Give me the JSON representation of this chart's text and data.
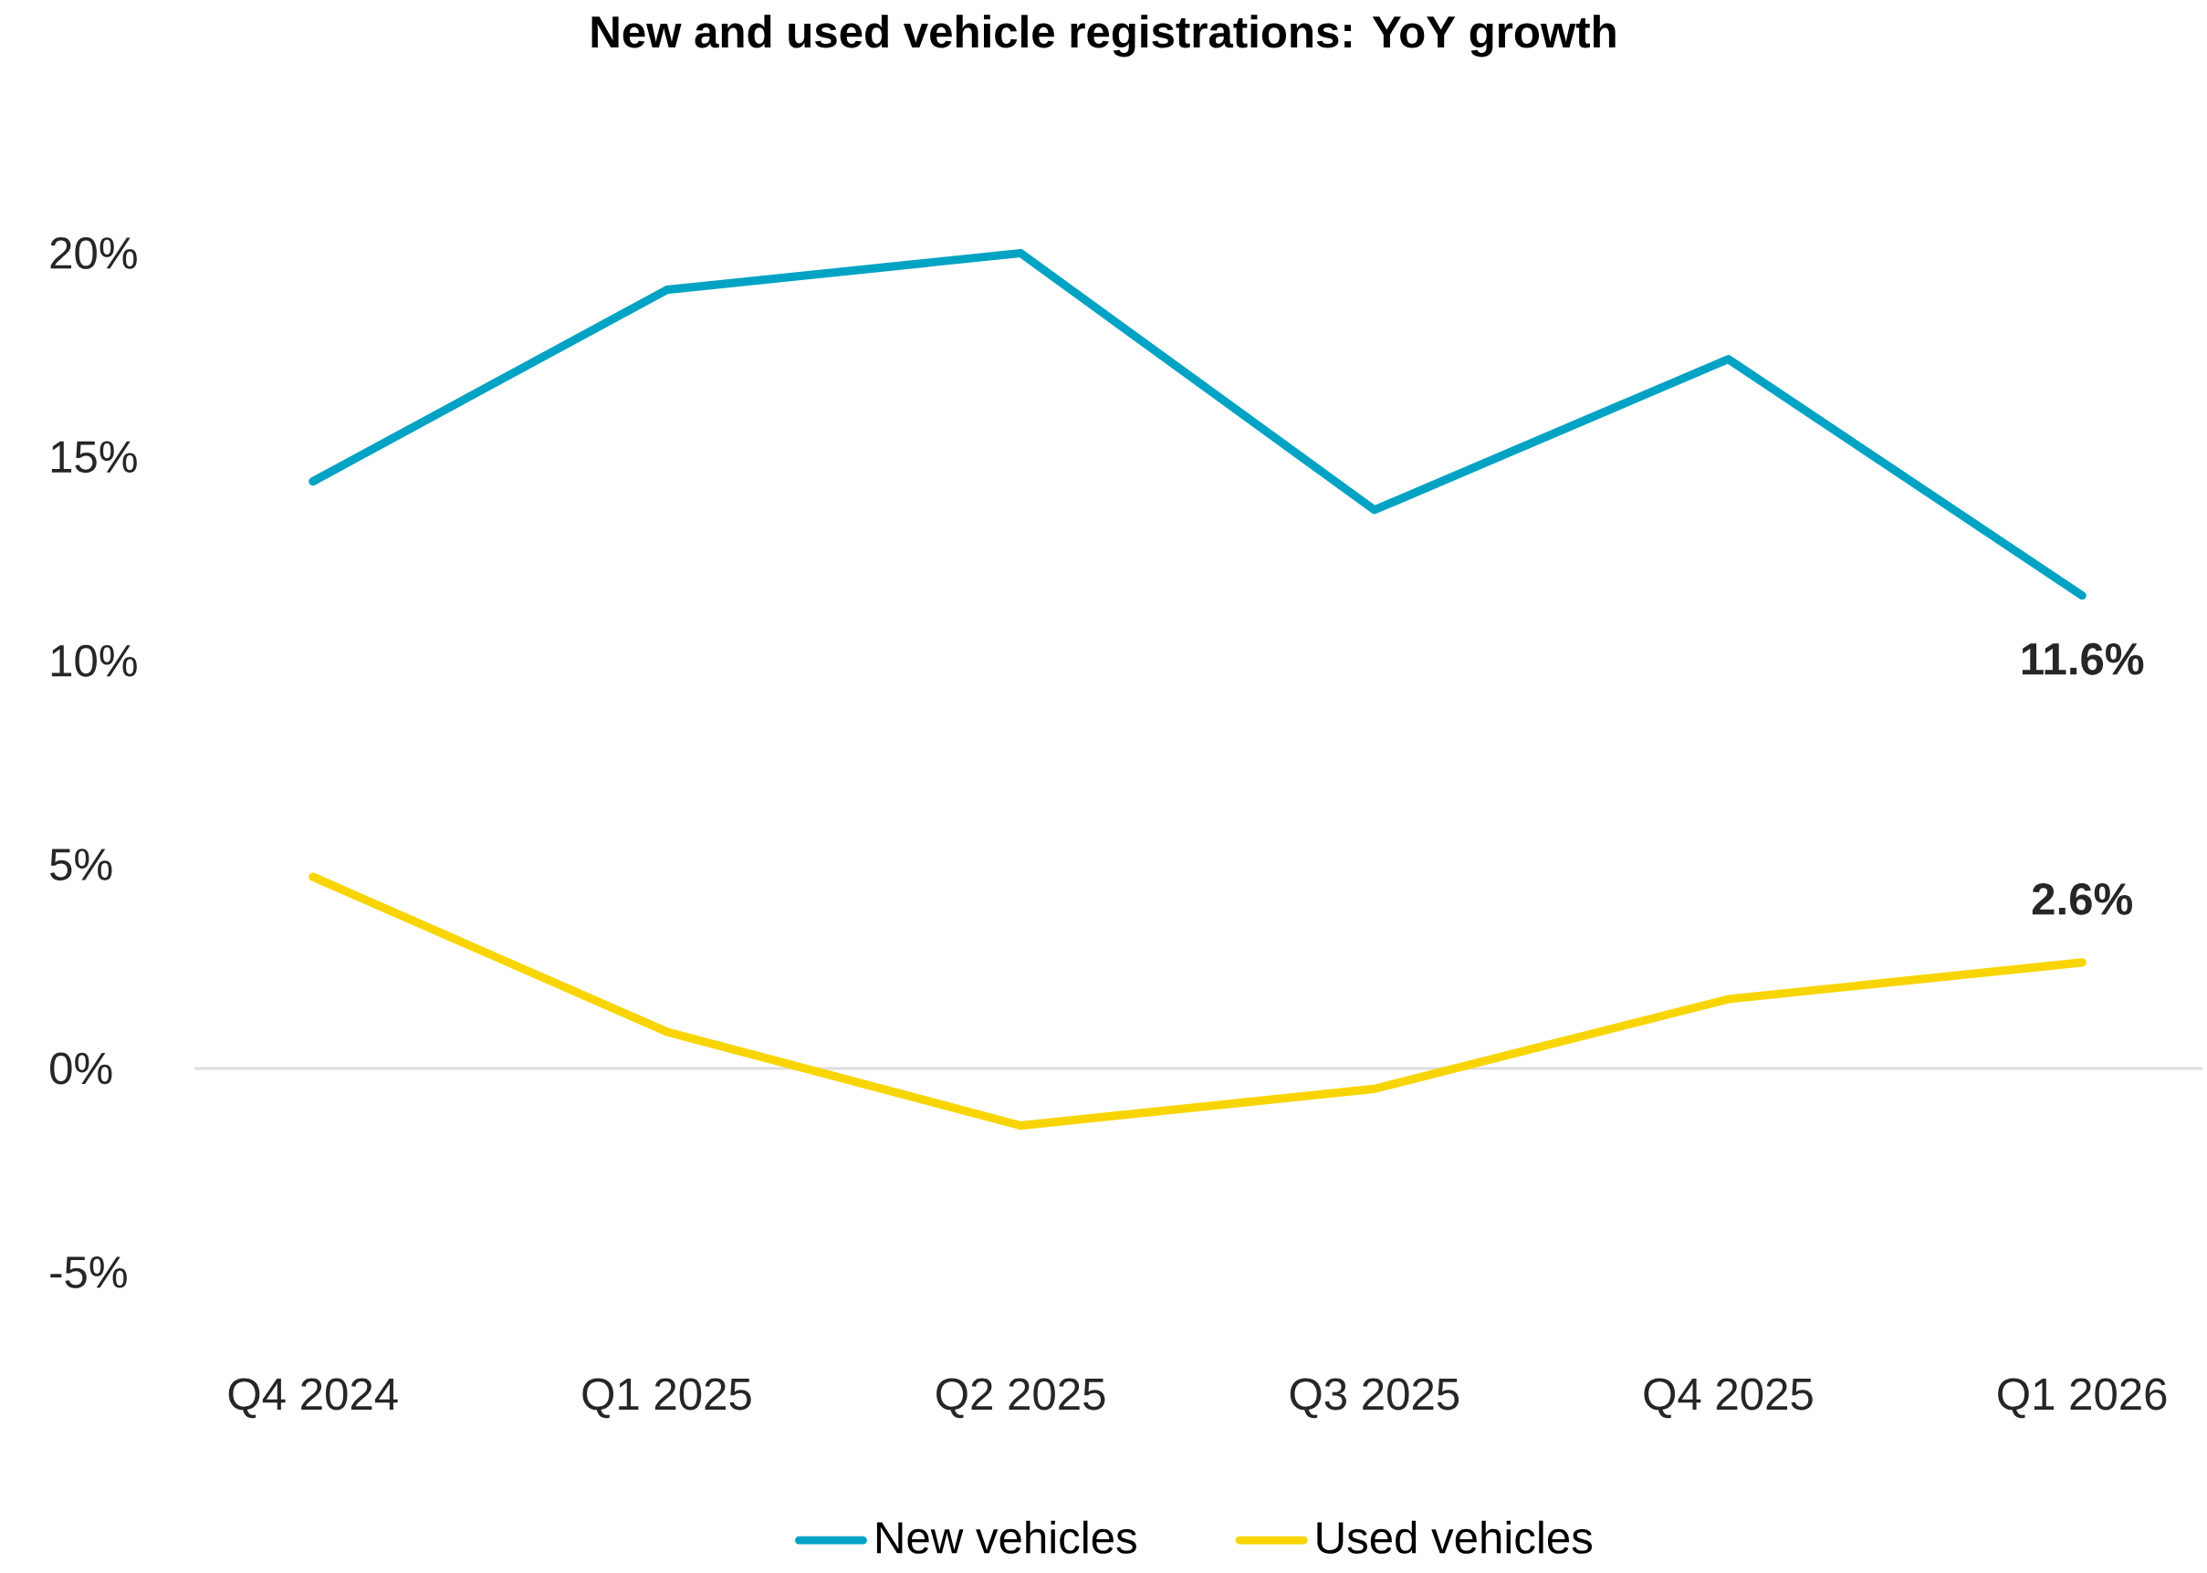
{
  "chart_data": {
    "type": "line",
    "title": "New and used vehicle registrations: YoY growth",
    "categories": [
      "Q4 2024",
      "Q1 2025",
      "Q2 2025",
      "Q3 2025",
      "Q4 2025",
      "Q1 2026"
    ],
    "series": [
      {
        "name": "New vehicles",
        "color": "#00a3c4",
        "values": [
          14.4,
          19.1,
          20.0,
          13.7,
          17.4,
          11.6
        ],
        "value_labels": [
          null,
          null,
          null,
          null,
          null,
          "11.6%"
        ]
      },
      {
        "name": "Used vehicles",
        "color": "#f8d500",
        "values": [
          4.7,
          0.9,
          -1.4,
          -0.5,
          1.7,
          2.6
        ],
        "value_labels": [
          null,
          null,
          null,
          null,
          null,
          "2.6%"
        ]
      }
    ],
    "ylim": [
      -5,
      20
    ],
    "yticks": [
      {
        "value": -5,
        "label": "-5%"
      },
      {
        "value": 0,
        "label": "0%"
      },
      {
        "value": 5,
        "label": "5%"
      },
      {
        "value": 10,
        "label": "10%"
      },
      {
        "value": 15,
        "label": "15%"
      },
      {
        "value": 20,
        "label": "20%"
      }
    ],
    "ref_lines": [
      {
        "axis": "y",
        "value": 0,
        "color": "#dddddd"
      }
    ],
    "legend": "bottom",
    "line_style": "solid"
  }
}
